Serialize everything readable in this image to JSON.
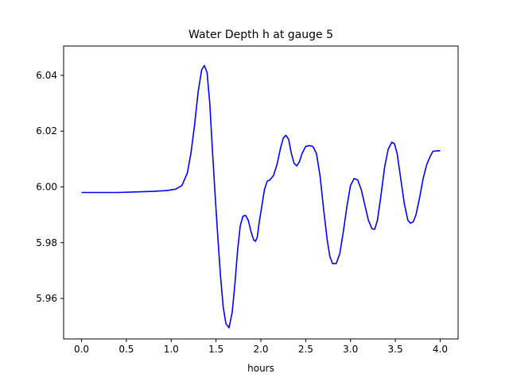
{
  "chart_data": {
    "type": "line",
    "title": "Water Depth h at gauge 5",
    "xlabel": "hours",
    "ylabel": "",
    "xlim": [
      -0.2,
      4.2
    ],
    "ylim": [
      5.9455,
      6.0505
    ],
    "xticks": [
      0.0,
      0.5,
      1.0,
      1.5,
      2.0,
      2.5,
      3.0,
      3.5,
      4.0
    ],
    "xtick_labels": [
      "0.0",
      "0.5",
      "1.0",
      "1.5",
      "2.0",
      "2.5",
      "3.0",
      "3.5",
      "4.0"
    ],
    "yticks": [
      5.96,
      5.98,
      6.0,
      6.02,
      6.04
    ],
    "ytick_labels": [
      "5.96",
      "5.98",
      "6.00",
      "6.02",
      "6.04"
    ],
    "grid": false,
    "series": [
      {
        "color": "#0000ff",
        "points": [
          [
            0.0,
            5.998
          ],
          [
            0.2,
            5.998
          ],
          [
            0.4,
            5.998
          ],
          [
            0.6,
            5.9982
          ],
          [
            0.8,
            5.9984
          ],
          [
            0.95,
            5.9987
          ],
          [
            1.05,
            5.9992
          ],
          [
            1.12,
            6.0005
          ],
          [
            1.18,
            6.005
          ],
          [
            1.22,
            6.012
          ],
          [
            1.26,
            6.022
          ],
          [
            1.3,
            6.034
          ],
          [
            1.34,
            6.042
          ],
          [
            1.37,
            6.0435
          ],
          [
            1.4,
            6.041
          ],
          [
            1.43,
            6.03
          ],
          [
            1.46,
            6.013
          ],
          [
            1.49,
            5.997
          ],
          [
            1.52,
            5.982
          ],
          [
            1.55,
            5.968
          ],
          [
            1.58,
            5.957
          ],
          [
            1.61,
            5.951
          ],
          [
            1.645,
            5.9495
          ],
          [
            1.68,
            5.955
          ],
          [
            1.71,
            5.965
          ],
          [
            1.74,
            5.977
          ],
          [
            1.77,
            5.986
          ],
          [
            1.8,
            5.9895
          ],
          [
            1.83,
            5.9898
          ],
          [
            1.86,
            5.988
          ],
          [
            1.89,
            5.984
          ],
          [
            1.92,
            5.981
          ],
          [
            1.94,
            5.9805
          ],
          [
            1.96,
            5.982
          ],
          [
            1.98,
            5.987
          ],
          [
            2.01,
            5.993
          ],
          [
            2.04,
            5.999
          ],
          [
            2.07,
            6.002
          ],
          [
            2.1,
            6.0025
          ],
          [
            2.14,
            6.004
          ],
          [
            2.18,
            6.008
          ],
          [
            2.22,
            6.014
          ],
          [
            2.25,
            6.0175
          ],
          [
            2.28,
            6.0185
          ],
          [
            2.31,
            6.017
          ],
          [
            2.34,
            6.012
          ],
          [
            2.37,
            6.0085
          ],
          [
            2.4,
            6.0075
          ],
          [
            2.43,
            6.009
          ],
          [
            2.46,
            6.012
          ],
          [
            2.5,
            6.0145
          ],
          [
            2.54,
            6.0148
          ],
          [
            2.58,
            6.0145
          ],
          [
            2.62,
            6.012
          ],
          [
            2.66,
            6.004
          ],
          [
            2.7,
            5.992
          ],
          [
            2.74,
            5.981
          ],
          [
            2.77,
            5.975
          ],
          [
            2.8,
            5.9725
          ],
          [
            2.84,
            5.9725
          ],
          [
            2.88,
            5.976
          ],
          [
            2.92,
            5.984
          ],
          [
            2.96,
            5.993
          ],
          [
            3.0,
            6.0005
          ],
          [
            3.04,
            6.003
          ],
          [
            3.08,
            6.0025
          ],
          [
            3.12,
            5.999
          ],
          [
            3.16,
            5.9935
          ],
          [
            3.2,
            5.988
          ],
          [
            3.24,
            5.985
          ],
          [
            3.27,
            5.9848
          ],
          [
            3.3,
            5.988
          ],
          [
            3.34,
            5.997
          ],
          [
            3.38,
            6.007
          ],
          [
            3.42,
            6.0135
          ],
          [
            3.46,
            6.016
          ],
          [
            3.49,
            6.0155
          ],
          [
            3.52,
            6.012
          ],
          [
            3.56,
            6.003
          ],
          [
            3.6,
            5.994
          ],
          [
            3.64,
            5.988
          ],
          [
            3.67,
            5.987
          ],
          [
            3.7,
            5.9875
          ],
          [
            3.73,
            5.99
          ],
          [
            3.77,
            5.996
          ],
          [
            3.81,
            6.003
          ],
          [
            3.85,
            6.008
          ],
          [
            3.89,
            6.011
          ],
          [
            3.92,
            6.0128
          ],
          [
            4.0,
            6.013
          ]
        ]
      }
    ]
  }
}
